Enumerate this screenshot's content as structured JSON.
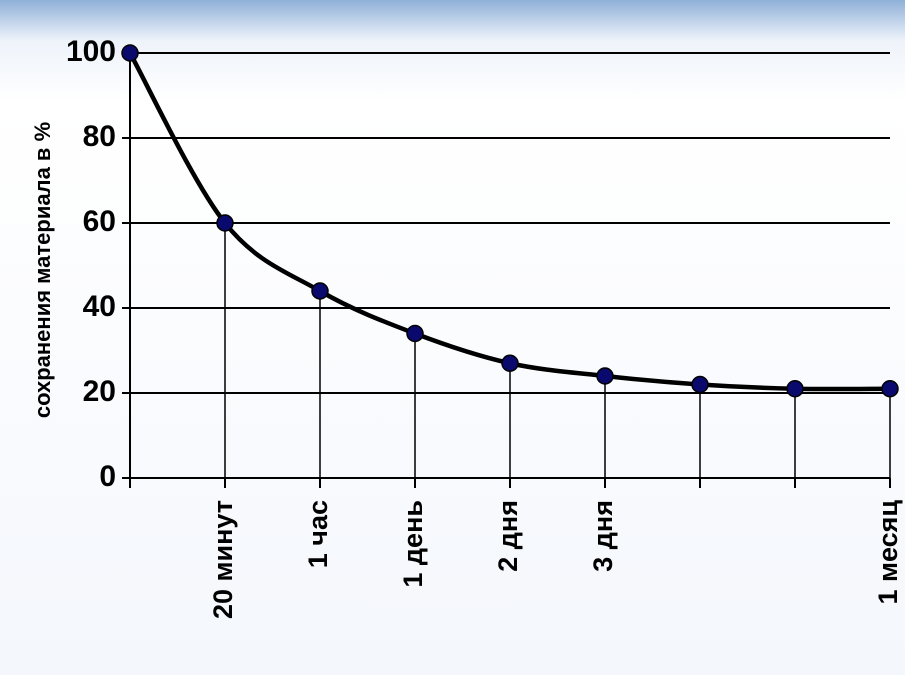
{
  "chart_data": {
    "type": "line",
    "y_axis_label": "сохранения материала в %",
    "categories": [
      null,
      "20 минут",
      "1 час",
      "1 день",
      "2 дня",
      "3 дня",
      null,
      null,
      "1 месяц"
    ],
    "series": [
      {
        "name": null,
        "color": "#000000",
        "marker_color": "#0a0a6e",
        "values": [
          100,
          60,
          44,
          34,
          27,
          24,
          22,
          21,
          21
        ]
      }
    ],
    "ylim": [
      0,
      100
    ],
    "yticks": [
      0,
      20,
      40,
      60,
      80,
      100
    ],
    "grid": true
  }
}
